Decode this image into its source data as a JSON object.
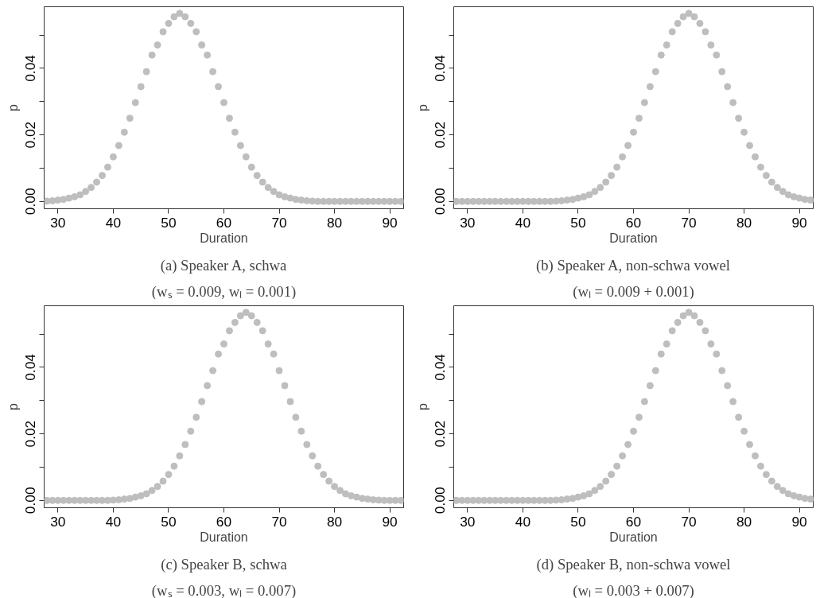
{
  "chart_data": [
    {
      "type": "scatter",
      "title": "(a) Speaker A, schwa",
      "subtitle": "(wₛ = 0.009, wₗ = 0.001)",
      "xlabel": "Duration",
      "ylabel": "p",
      "marker": "circle",
      "xlim": [
        27.5,
        92.5
      ],
      "ylim": [
        -0.0022,
        0.0585
      ],
      "xticks": [
        30,
        40,
        50,
        60,
        70,
        80,
        90
      ],
      "yticks": [
        {
          "value": 0,
          "label": "0.00"
        },
        {
          "value": 0.01,
          "label": null
        },
        {
          "value": 0.02,
          "label": "0.02"
        },
        {
          "value": 0.03,
          "label": null
        },
        {
          "value": 0.04,
          "label": "0.04"
        },
        {
          "value": 0.05,
          "label": null
        }
      ],
      "x": [
        28,
        29,
        30,
        31,
        32,
        33,
        34,
        35,
        36,
        37,
        38,
        39,
        40,
        41,
        42,
        43,
        44,
        45,
        46,
        47,
        48,
        49,
        50,
        51,
        52,
        53,
        54,
        55,
        56,
        57,
        58,
        59,
        60,
        61,
        62,
        63,
        64,
        65,
        66,
        67,
        68,
        69,
        70,
        71,
        72,
        73,
        74,
        75,
        76,
        77,
        78,
        79,
        80,
        81,
        82,
        83,
        84,
        85,
        86,
        87,
        88,
        89,
        90,
        91,
        92
      ],
      "series": [
        {
          "color": "#bebebe",
          "values": [
            0.0001,
            0.0002,
            0.0004,
            0.0006,
            0.001,
            0.0014,
            0.002,
            0.003,
            0.0042,
            0.0058,
            0.0078,
            0.0103,
            0.0134,
            0.0168,
            0.0208,
            0.025,
            0.0297,
            0.0345,
            0.039,
            0.044,
            0.047,
            0.051,
            0.0535,
            0.0555,
            0.0565,
            0.0555,
            0.0535,
            0.051,
            0.047,
            0.044,
            0.039,
            0.0345,
            0.0297,
            0.025,
            0.0208,
            0.0168,
            0.0134,
            0.0103,
            0.0078,
            0.0058,
            0.0042,
            0.003,
            0.002,
            0.0014,
            0.001,
            0.0006,
            0.0004,
            0.0002,
            0.0001,
            0,
            0,
            0,
            0,
            0,
            0,
            0,
            0,
            0,
            0,
            0,
            0,
            0,
            0,
            0,
            0
          ]
        }
      ]
    },
    {
      "type": "scatter",
      "title": "(b) Speaker A, non-schwa vowel",
      "subtitle": "(wₗ = 0.009 + 0.001)",
      "xlabel": "Duration",
      "ylabel": "p",
      "marker": "circle",
      "xlim": [
        27.5,
        92.5
      ],
      "ylim": [
        -0.0022,
        0.0585
      ],
      "xticks": [
        30,
        40,
        50,
        60,
        70,
        80,
        90
      ],
      "yticks": [
        {
          "value": 0,
          "label": "0.00"
        },
        {
          "value": 0.01,
          "label": null
        },
        {
          "value": 0.02,
          "label": "0.02"
        },
        {
          "value": 0.03,
          "label": null
        },
        {
          "value": 0.04,
          "label": "0.04"
        },
        {
          "value": 0.05,
          "label": null
        }
      ],
      "x": [
        28,
        29,
        30,
        31,
        32,
        33,
        34,
        35,
        36,
        37,
        38,
        39,
        40,
        41,
        42,
        43,
        44,
        45,
        46,
        47,
        48,
        49,
        50,
        51,
        52,
        53,
        54,
        55,
        56,
        57,
        58,
        59,
        60,
        61,
        62,
        63,
        64,
        65,
        66,
        67,
        68,
        69,
        70,
        71,
        72,
        73,
        74,
        75,
        76,
        77,
        78,
        79,
        80,
        81,
        82,
        83,
        84,
        85,
        86,
        87,
        88,
        89,
        90,
        91,
        92
      ],
      "series": [
        {
          "color": "#bebebe",
          "values": [
            0,
            0,
            0,
            0,
            0,
            0,
            0,
            0,
            0,
            0,
            0,
            0,
            0,
            0,
            0,
            0,
            0,
            0,
            0.0001,
            0.0002,
            0.0004,
            0.0006,
            0.001,
            0.0014,
            0.002,
            0.003,
            0.0042,
            0.0058,
            0.0078,
            0.0103,
            0.0134,
            0.0168,
            0.0208,
            0.025,
            0.0297,
            0.0345,
            0.039,
            0.044,
            0.047,
            0.051,
            0.0535,
            0.0555,
            0.0565,
            0.0555,
            0.0535,
            0.051,
            0.047,
            0.044,
            0.039,
            0.0345,
            0.0297,
            0.025,
            0.0208,
            0.0168,
            0.0134,
            0.0103,
            0.0078,
            0.0058,
            0.0042,
            0.003,
            0.002,
            0.0014,
            0.001,
            0.0006,
            0.0004
          ]
        }
      ]
    },
    {
      "type": "scatter",
      "title": "(c) Speaker B, schwa",
      "subtitle": "(wₛ = 0.003, wₗ = 0.007)",
      "xlabel": "Duration",
      "ylabel": "p",
      "marker": "circle",
      "xlim": [
        27.5,
        92.5
      ],
      "ylim": [
        -0.0022,
        0.0585
      ],
      "xticks": [
        30,
        40,
        50,
        60,
        70,
        80,
        90
      ],
      "yticks": [
        {
          "value": 0,
          "label": "0.00"
        },
        {
          "value": 0.01,
          "label": null
        },
        {
          "value": 0.02,
          "label": "0.02"
        },
        {
          "value": 0.03,
          "label": null
        },
        {
          "value": 0.04,
          "label": "0.04"
        },
        {
          "value": 0.05,
          "label": null
        }
      ],
      "x": [
        28,
        29,
        30,
        31,
        32,
        33,
        34,
        35,
        36,
        37,
        38,
        39,
        40,
        41,
        42,
        43,
        44,
        45,
        46,
        47,
        48,
        49,
        50,
        51,
        52,
        53,
        54,
        55,
        56,
        57,
        58,
        59,
        60,
        61,
        62,
        63,
        64,
        65,
        66,
        67,
        68,
        69,
        70,
        71,
        72,
        73,
        74,
        75,
        76,
        77,
        78,
        79,
        80,
        81,
        82,
        83,
        84,
        85,
        86,
        87,
        88,
        89,
        90,
        91,
        92
      ],
      "series": [
        {
          "color": "#bebebe",
          "values": [
            0,
            0,
            0,
            0,
            0,
            0,
            0,
            0,
            0,
            0,
            0,
            0,
            0.0001,
            0.0002,
            0.0004,
            0.0006,
            0.001,
            0.0014,
            0.002,
            0.003,
            0.0042,
            0.0058,
            0.0078,
            0.0103,
            0.0134,
            0.0168,
            0.0208,
            0.025,
            0.0297,
            0.0345,
            0.039,
            0.044,
            0.047,
            0.051,
            0.0535,
            0.0555,
            0.0565,
            0.0555,
            0.0535,
            0.051,
            0.047,
            0.044,
            0.039,
            0.0345,
            0.0297,
            0.025,
            0.0208,
            0.0168,
            0.0134,
            0.0103,
            0.0078,
            0.0058,
            0.0042,
            0.003,
            0.002,
            0.0014,
            0.001,
            0.0006,
            0.0004,
            0.0002,
            0.0001,
            0,
            0,
            0,
            0
          ]
        }
      ]
    },
    {
      "type": "scatter",
      "title": "(d) Speaker B, non-schwa vowel",
      "subtitle": "(wₗ = 0.003 + 0.007)",
      "xlabel": "Duration",
      "ylabel": "p",
      "marker": "circle",
      "xlim": [
        27.5,
        92.5
      ],
      "ylim": [
        -0.0022,
        0.0585
      ],
      "xticks": [
        30,
        40,
        50,
        60,
        70,
        80,
        90
      ],
      "yticks": [
        {
          "value": 0,
          "label": "0.00"
        },
        {
          "value": 0.01,
          "label": null
        },
        {
          "value": 0.02,
          "label": "0.02"
        },
        {
          "value": 0.03,
          "label": null
        },
        {
          "value": 0.04,
          "label": "0.04"
        },
        {
          "value": 0.05,
          "label": null
        }
      ],
      "x": [
        28,
        29,
        30,
        31,
        32,
        33,
        34,
        35,
        36,
        37,
        38,
        39,
        40,
        41,
        42,
        43,
        44,
        45,
        46,
        47,
        48,
        49,
        50,
        51,
        52,
        53,
        54,
        55,
        56,
        57,
        58,
        59,
        60,
        61,
        62,
        63,
        64,
        65,
        66,
        67,
        68,
        69,
        70,
        71,
        72,
        73,
        74,
        75,
        76,
        77,
        78,
        79,
        80,
        81,
        82,
        83,
        84,
        85,
        86,
        87,
        88,
        89,
        90,
        91,
        92
      ],
      "series": [
        {
          "color": "#bebebe",
          "values": [
            0,
            0,
            0,
            0,
            0,
            0,
            0,
            0,
            0,
            0,
            0,
            0,
            0,
            0,
            0,
            0,
            0,
            0,
            0.0001,
            0.0002,
            0.0004,
            0.0006,
            0.001,
            0.0014,
            0.002,
            0.003,
            0.0042,
            0.0058,
            0.0078,
            0.0103,
            0.0134,
            0.0168,
            0.0208,
            0.025,
            0.0297,
            0.0345,
            0.039,
            0.044,
            0.047,
            0.051,
            0.0535,
            0.0555,
            0.0565,
            0.0555,
            0.0535,
            0.051,
            0.047,
            0.044,
            0.039,
            0.0345,
            0.0297,
            0.025,
            0.0208,
            0.0168,
            0.0134,
            0.0103,
            0.0078,
            0.0058,
            0.0042,
            0.003,
            0.002,
            0.0014,
            0.001,
            0.0006,
            0.0004
          ]
        }
      ]
    }
  ]
}
